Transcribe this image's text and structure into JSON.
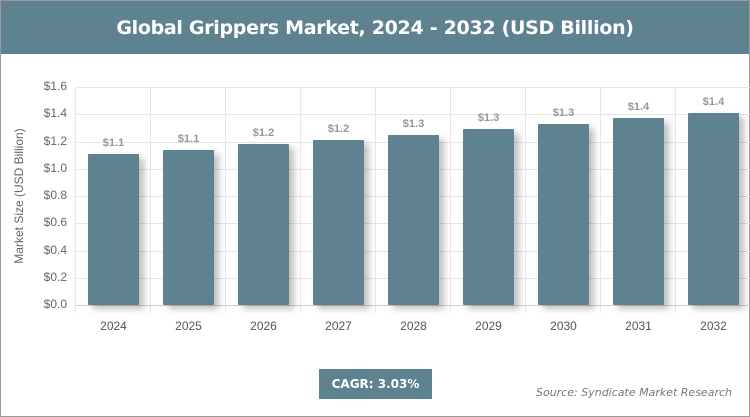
{
  "header": {
    "title": "Global Grippers Market, 2024 - 2032 (USD Billion)"
  },
  "footer": {
    "cagr": "CAGR: 3.03%",
    "source": "Source: Syndicate Market Research"
  },
  "colors": {
    "bar": "#5f8291",
    "header": "#5f8291"
  },
  "chart_data": {
    "type": "bar",
    "title": "Global Grippers Market, 2024 - 2032 (USD Billion)",
    "xlabel": "",
    "ylabel": "Market Size (USD Billion)",
    "categories": [
      "2024",
      "2025",
      "2026",
      "2027",
      "2028",
      "2029",
      "2030",
      "2031",
      "2032"
    ],
    "values": [
      1.11,
      1.14,
      1.18,
      1.21,
      1.25,
      1.29,
      1.33,
      1.37,
      1.41
    ],
    "data_labels": [
      "$1.1",
      "$1.1",
      "$1.2",
      "$1.2",
      "$1.3",
      "$1.3",
      "$1.3",
      "$1.4",
      "$1.4"
    ],
    "ylim": [
      0,
      1.6
    ],
    "yticks": [
      "$0.0",
      "$0.2",
      "$0.4",
      "$0.6",
      "$0.8",
      "$1.0",
      "$1.2",
      "$1.4",
      "$1.6"
    ],
    "grid": true,
    "legend": "none",
    "annotations": [
      "CAGR: 3.03%",
      "Source: Syndicate Market Research"
    ]
  }
}
